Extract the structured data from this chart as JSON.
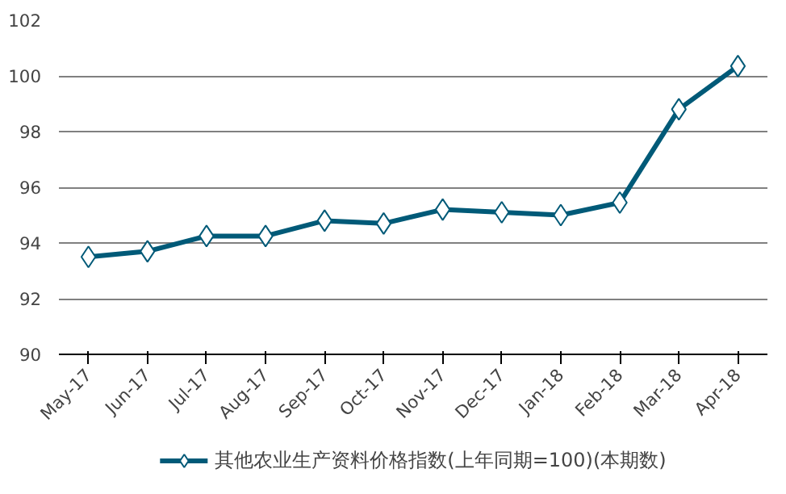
{
  "chart_data": {
    "type": "line",
    "categories": [
      "May-17",
      "Jun-17",
      "Jul-17",
      "Aug-17",
      "Sep-17",
      "Oct-17",
      "Nov-17",
      "Dec-17",
      "Jan-18",
      "Feb-18",
      "Mar-18",
      "Apr-18"
    ],
    "series": [
      {
        "name": "其他农业生产资料价格指数(上年同期=100)(本期数)",
        "color": "#005a78",
        "values": [
          93.5,
          93.7,
          94.25,
          94.25,
          94.8,
          94.7,
          95.2,
          95.1,
          95.0,
          95.45,
          98.8,
          100.35
        ]
      }
    ],
    "ylim": [
      90,
      102
    ],
    "yticks": [
      90,
      92,
      94,
      96,
      98,
      100,
      102
    ],
    "grid": "y",
    "legend": "bottom",
    "marker": "diamond",
    "line_style": "solid"
  }
}
